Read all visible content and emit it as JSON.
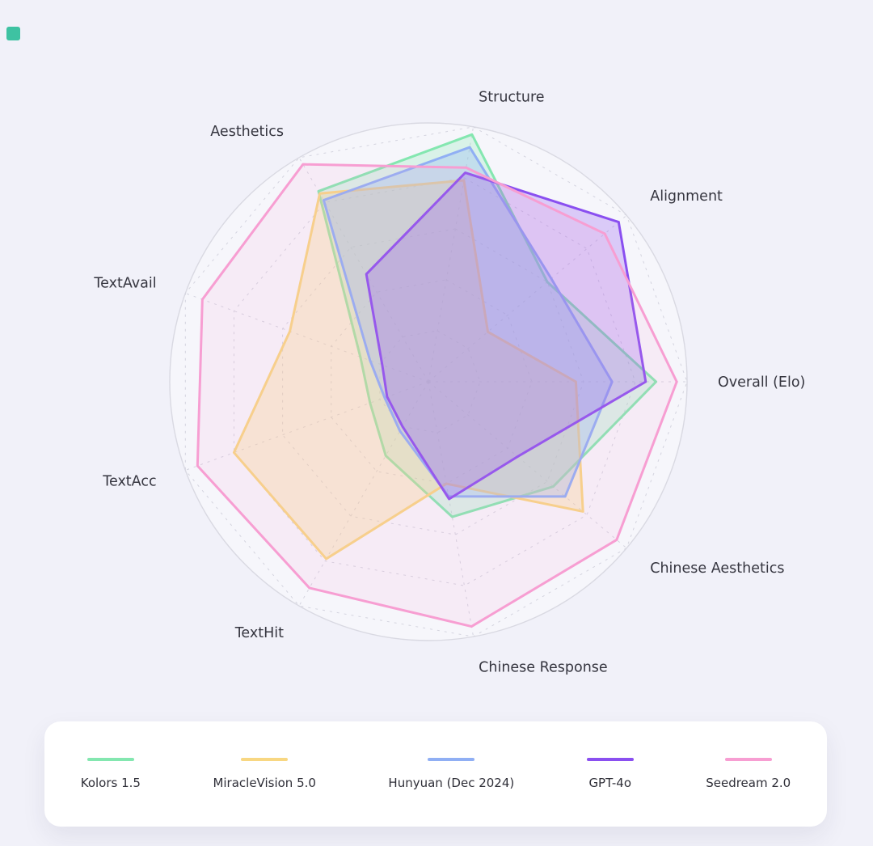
{
  "page": {
    "background": "#F1F1F9",
    "corner_accent_color": "#3EC2A2",
    "text_color": "#35353F",
    "grid_color": "#D4D4DF"
  },
  "chart_data": {
    "type": "radar",
    "categories": [
      "Structure",
      "Alignment",
      "Overall (Elo)",
      "Chinese Aesthetics",
      "Chinese Response",
      "TextHit",
      "TextAcc",
      "TextAvail",
      "Aesthetics"
    ],
    "series": [
      {
        "name": "Kolors 1.5",
        "color": "#84E7B0",
        "fill": "rgba(132,231,176,0.25)",
        "values": [
          0.97,
          0.6,
          0.88,
          0.63,
          0.53,
          0.33,
          0.24,
          0.28,
          0.85
        ]
      },
      {
        "name": "MiracleVision 5.0",
        "color": "#F8D782",
        "fill": "rgba(248,215,130,0.32)",
        "values": [
          0.79,
          0.3,
          0.57,
          0.78,
          0.4,
          0.79,
          0.8,
          0.57,
          0.84
        ]
      },
      {
        "name": "Hunyuan (Dec 2024)",
        "color": "#90AFF4",
        "fill": "rgba(144,175,244,0.30)",
        "values": [
          0.92,
          0.62,
          0.71,
          0.69,
          0.45,
          0.22,
          0.18,
          0.24,
          0.81
        ]
      },
      {
        "name": "GPT-4o",
        "color": "#8A4FF0",
        "fill": "rgba(138,79,240,0.26)",
        "values": [
          0.82,
          0.96,
          0.84,
          0.45,
          0.46,
          0.2,
          0.17,
          0.19,
          0.48
        ]
      },
      {
        "name": "Seedream 2.0",
        "color": "#F79ED2",
        "fill": "rgba(247,158,210,0.12)",
        "values": [
          0.84,
          0.89,
          0.96,
          0.95,
          0.96,
          0.92,
          0.95,
          0.93,
          0.97
        ]
      }
    ],
    "rlim": [
      0,
      1
    ],
    "rings": [
      0.2,
      0.4,
      0.6,
      0.8,
      1.0
    ],
    "grid": "dashed",
    "legend_position": "bottom",
    "start_angle_deg": 80,
    "angle_step_deg": -40
  }
}
